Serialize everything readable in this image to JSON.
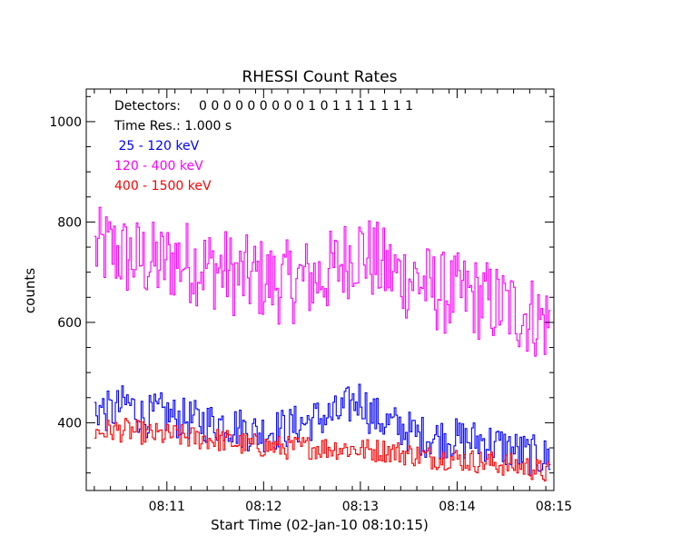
{
  "chart_data": {
    "type": "line",
    "title": "RHESSI Count Rates",
    "xlabel": "Start Time (02-Jan-10 08:10:15)",
    "ylabel": "counts",
    "x_unit": "seconds after 08:10:15",
    "xlim": [
      -5,
      285
    ],
    "ylim": [
      265,
      1065
    ],
    "x_ticks": [
      {
        "label": "08:11",
        "value": 45
      },
      {
        "label": "08:12",
        "value": 105
      },
      {
        "label": "08:13",
        "value": 165
      },
      {
        "label": "08:14",
        "value": 225
      },
      {
        "label": "08:15",
        "value": 285
      }
    ],
    "y_ticks": [
      400,
      600,
      800,
      1000
    ],
    "annotations": {
      "detectors_label": "Detectors:",
      "detectors": "0 0 0 0 0 0 0 0 0 1 0 1 1 1 1 1 1 1",
      "time_res": "Time Res.: 1.000 s"
    },
    "series": [
      {
        "name": " 25 - 120 keV",
        "color": "#0000ff",
        "keyframes": [
          [
            0,
            430
          ],
          [
            10,
            420
          ],
          [
            20,
            440
          ],
          [
            30,
            410
          ],
          [
            40,
            420
          ],
          [
            50,
            410
          ],
          [
            60,
            405
          ],
          [
            70,
            400
          ],
          [
            80,
            400
          ],
          [
            90,
            390
          ],
          [
            100,
            380
          ],
          [
            110,
            385
          ],
          [
            120,
            390
          ],
          [
            130,
            400
          ],
          [
            140,
            410
          ],
          [
            150,
            415
          ],
          [
            160,
            440
          ],
          [
            165,
            450
          ],
          [
            170,
            420
          ],
          [
            180,
            400
          ],
          [
            190,
            390
          ],
          [
            200,
            375
          ],
          [
            210,
            370
          ],
          [
            220,
            370
          ],
          [
            230,
            365
          ],
          [
            240,
            365
          ],
          [
            250,
            355
          ],
          [
            260,
            345
          ],
          [
            270,
            335
          ],
          [
            280,
            330
          ]
        ],
        "noise": 42
      },
      {
        "name": "120 - 400 keV",
        "color": "#ff00ff",
        "keyframes": [
          [
            0,
            745
          ],
          [
            10,
            745
          ],
          [
            20,
            730
          ],
          [
            30,
            725
          ],
          [
            40,
            715
          ],
          [
            50,
            725
          ],
          [
            60,
            720
          ],
          [
            70,
            710
          ],
          [
            80,
            705
          ],
          [
            90,
            690
          ],
          [
            100,
            690
          ],
          [
            110,
            680
          ],
          [
            120,
            680
          ],
          [
            130,
            685
          ],
          [
            140,
            690
          ],
          [
            150,
            710
          ],
          [
            160,
            740
          ],
          [
            165,
            745
          ],
          [
            170,
            730
          ],
          [
            180,
            705
          ],
          [
            190,
            690
          ],
          [
            200,
            685
          ],
          [
            210,
            665
          ],
          [
            220,
            655
          ],
          [
            230,
            655
          ],
          [
            240,
            645
          ],
          [
            250,
            635
          ],
          [
            260,
            625
          ],
          [
            270,
            615
          ],
          [
            280,
            600
          ]
        ],
        "noise": 85
      },
      {
        "name": "400 - 1500 keV",
        "color": "#ff0000",
        "keyframes": [
          [
            0,
            380
          ],
          [
            10,
            385
          ],
          [
            20,
            385
          ],
          [
            30,
            380
          ],
          [
            40,
            375
          ],
          [
            50,
            375
          ],
          [
            60,
            370
          ],
          [
            70,
            368
          ],
          [
            80,
            365
          ],
          [
            90,
            358
          ],
          [
            100,
            355
          ],
          [
            110,
            352
          ],
          [
            120,
            350
          ],
          [
            130,
            352
          ],
          [
            140,
            350
          ],
          [
            150,
            350
          ],
          [
            160,
            348
          ],
          [
            170,
            345
          ],
          [
            180,
            345
          ],
          [
            190,
            340
          ],
          [
            200,
            335
          ],
          [
            210,
            330
          ],
          [
            220,
            330
          ],
          [
            230,
            325
          ],
          [
            240,
            322
          ],
          [
            250,
            318
          ],
          [
            260,
            315
          ],
          [
            270,
            310
          ],
          [
            280,
            300
          ]
        ],
        "noise": 24
      }
    ]
  }
}
